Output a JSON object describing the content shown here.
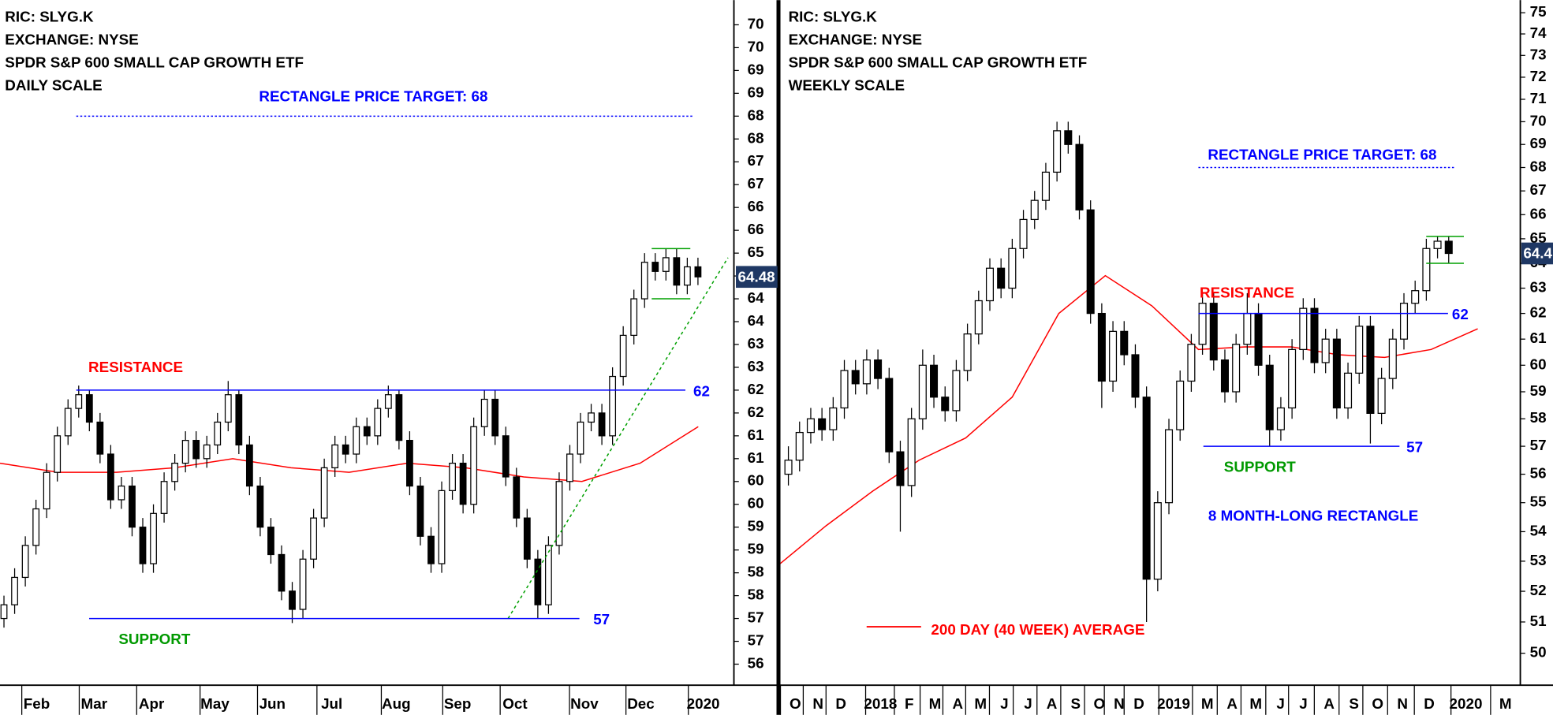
{
  "chart_data": [
    {
      "type": "candlestick",
      "header": [
        "RIC: SLYG.K",
        "EXCHANGE: NYSE",
        "SPDR S&P 600 SMALL CAP GROWTH ETF",
        "DAILY SCALE"
      ],
      "log_scale": false,
      "ylim": [
        55.54,
        70.54
      ],
      "yticks": [
        70,
        {
          "value": 69.5,
          "label": "70"
        },
        69,
        {
          "value": 68.5,
          "label": "69"
        },
        68,
        {
          "value": 67.5,
          "label": "68"
        },
        67,
        {
          "value": 66.5,
          "label": "67"
        },
        66,
        {
          "value": 65.5,
          "label": "66"
        },
        65,
        {
          "value": 64.5,
          "label": "65"
        },
        64,
        {
          "value": 63.5,
          "label": "64"
        },
        63,
        {
          "value": 62.5,
          "label": "63"
        },
        62,
        {
          "value": 61.5,
          "label": "62"
        },
        61,
        {
          "value": 60.5,
          "label": "61"
        },
        60,
        {
          "value": 59.5,
          "label": "60"
        },
        59,
        {
          "value": 58.5,
          "label": "59"
        },
        58,
        {
          "value": 57.5,
          "label": "58"
        },
        57,
        {
          "value": 56.5,
          "label": "57"
        },
        56
      ],
      "categories": [
        "Feb",
        "Mar",
        "Apr",
        "May",
        "Jun",
        "Jul",
        "Aug",
        "Sep",
        "Oct",
        "Nov",
        "Dec",
        "2020"
      ],
      "candles": [
        [
          57.0,
          57.5,
          56.8,
          57.3
        ],
        [
          57.3,
          58.1,
          57.1,
          57.9
        ],
        [
          57.9,
          58.8,
          57.7,
          58.6
        ],
        [
          58.6,
          59.6,
          58.4,
          59.4
        ],
        [
          59.4,
          60.4,
          59.2,
          60.2
        ],
        [
          60.2,
          61.2,
          60.0,
          61.0
        ],
        [
          61.0,
          61.8,
          60.8,
          61.6
        ],
        [
          61.6,
          62.1,
          61.4,
          61.9
        ],
        [
          61.9,
          62.0,
          61.1,
          61.3
        ],
        [
          61.3,
          61.5,
          60.4,
          60.6
        ],
        [
          60.6,
          60.8,
          59.4,
          59.6
        ],
        [
          59.6,
          60.1,
          59.4,
          59.9
        ],
        [
          59.9,
          60.1,
          58.8,
          59.0
        ],
        [
          59.0,
          59.2,
          58.0,
          58.2
        ],
        [
          58.2,
          59.5,
          58.0,
          59.3
        ],
        [
          59.3,
          60.2,
          59.1,
          60.0
        ],
        [
          60.0,
          60.6,
          59.8,
          60.4
        ],
        [
          60.4,
          61.1,
          60.2,
          60.9
        ],
        [
          60.9,
          61.1,
          60.3,
          60.5
        ],
        [
          60.5,
          61.0,
          60.3,
          60.8
        ],
        [
          60.8,
          61.5,
          60.6,
          61.3
        ],
        [
          61.3,
          62.2,
          61.1,
          61.9
        ],
        [
          61.9,
          62.0,
          60.6,
          60.8
        ],
        [
          60.8,
          61.0,
          59.7,
          59.9
        ],
        [
          59.9,
          60.1,
          58.8,
          59.0
        ],
        [
          59.0,
          59.2,
          58.2,
          58.4
        ],
        [
          58.4,
          58.6,
          57.4,
          57.6
        ],
        [
          57.6,
          57.8,
          56.9,
          57.2
        ],
        [
          57.2,
          58.5,
          57.0,
          58.3
        ],
        [
          58.3,
          59.4,
          58.1,
          59.2
        ],
        [
          59.2,
          60.5,
          59.0,
          60.3
        ],
        [
          60.3,
          61.0,
          60.1,
          60.8
        ],
        [
          60.8,
          61.0,
          60.4,
          60.6
        ],
        [
          60.6,
          61.4,
          60.4,
          61.2
        ],
        [
          61.2,
          61.4,
          60.8,
          61.0
        ],
        [
          61.0,
          61.8,
          60.8,
          61.6
        ],
        [
          61.6,
          62.1,
          61.4,
          61.9
        ],
        [
          61.9,
          62.0,
          60.7,
          60.9
        ],
        [
          60.9,
          61.1,
          59.7,
          59.9
        ],
        [
          59.9,
          60.1,
          58.6,
          58.8
        ],
        [
          58.8,
          59.0,
          58.0,
          58.2
        ],
        [
          58.2,
          60.0,
          58.0,
          59.8
        ],
        [
          59.8,
          60.6,
          59.6,
          60.4
        ],
        [
          60.4,
          60.6,
          59.3,
          59.5
        ],
        [
          59.5,
          61.4,
          59.3,
          61.2
        ],
        [
          61.2,
          62.0,
          61.0,
          61.8
        ],
        [
          61.8,
          62.0,
          60.8,
          61.0
        ],
        [
          61.0,
          61.2,
          59.9,
          60.1
        ],
        [
          60.1,
          60.3,
          59.0,
          59.2
        ],
        [
          59.2,
          59.4,
          58.1,
          58.3
        ],
        [
          58.3,
          58.5,
          57.0,
          57.3
        ],
        [
          57.3,
          58.8,
          57.1,
          58.6
        ],
        [
          58.6,
          60.2,
          58.4,
          60.0
        ],
        [
          60.0,
          60.8,
          59.8,
          60.6
        ],
        [
          60.6,
          61.5,
          60.4,
          61.3
        ],
        [
          61.3,
          61.7,
          61.1,
          61.5
        ],
        [
          61.5,
          61.7,
          60.8,
          61.0
        ],
        [
          61.0,
          62.5,
          60.8,
          62.3
        ],
        [
          62.3,
          63.4,
          62.1,
          63.2
        ],
        [
          63.2,
          64.2,
          63.0,
          64.0
        ],
        [
          64.0,
          65.0,
          63.8,
          64.8
        ],
        [
          64.8,
          65.0,
          64.4,
          64.6
        ],
        [
          64.6,
          65.1,
          64.4,
          64.9
        ],
        [
          64.9,
          65.1,
          64.1,
          64.3
        ],
        [
          64.3,
          64.9,
          64.1,
          64.7
        ],
        [
          64.7,
          64.9,
          64.3,
          64.48
        ]
      ],
      "moving_average": {
        "color": "#ff0000",
        "values": [
          60.4,
          60.2,
          60.2,
          60.3,
          60.5,
          60.3,
          60.2,
          60.4,
          60.3,
          60.1,
          60.0,
          60.4,
          61.2
        ]
      },
      "levels": [
        {
          "name": "RECTANGLE PRICE TARGET: 68",
          "value": 68,
          "color": "#0000ff",
          "label_color": "#0000ff",
          "dotted": true
        },
        {
          "name": "RESISTANCE",
          "value": 62,
          "color": "#0000ff",
          "label_color": "#ff0000",
          "dotted": false
        },
        {
          "name": "SUPPORT",
          "value": 57,
          "color": "#0000ff",
          "label_color": "#009900",
          "dotted": false
        }
      ],
      "channel": [
        65.1,
        64.0
      ],
      "trendline": [
        57.0,
        64.9
      ],
      "last_price": 64.48
    },
    {
      "type": "candlestick",
      "header": [
        "RIC: SLYG.K",
        "EXCHANGE: NYSE",
        "SPDR S&P 600 SMALL CAP GROWTH ETF",
        "WEEKLY SCALE"
      ],
      "log_scale": true,
      "ylim": [
        49.0,
        75.6
      ],
      "yticks": [
        50,
        51,
        52,
        53,
        54,
        55,
        56,
        57,
        58,
        59,
        60,
        61,
        62,
        63,
        64,
        65,
        66,
        67,
        68,
        69,
        70,
        71,
        72,
        73,
        74,
        75
      ],
      "categories": [
        "O",
        "N",
        "D",
        "2018",
        "F",
        "M",
        "A",
        "M",
        "J",
        "J",
        "A",
        "S",
        "O",
        "N",
        "D",
        "2019",
        "M",
        "A",
        "M",
        "J",
        "J",
        "A",
        "S",
        "O",
        "N",
        "D",
        "2020",
        "M"
      ],
      "candles": [
        [
          56.0,
          57.0,
          55.6,
          56.5
        ],
        [
          56.5,
          57.9,
          56.1,
          57.5
        ],
        [
          57.5,
          58.4,
          57.1,
          58.0
        ],
        [
          58.0,
          58.4,
          57.2,
          57.6
        ],
        [
          57.6,
          58.8,
          57.2,
          58.4
        ],
        [
          58.4,
          60.2,
          58.0,
          59.8
        ],
        [
          59.8,
          60.2,
          58.9,
          59.3
        ],
        [
          59.3,
          60.6,
          58.9,
          60.2
        ],
        [
          60.2,
          60.6,
          59.1,
          59.5
        ],
        [
          59.5,
          59.9,
          56.4,
          56.8
        ],
        [
          56.8,
          57.2,
          54.0,
          55.6
        ],
        [
          55.6,
          58.4,
          55.2,
          58.0
        ],
        [
          58.0,
          60.6,
          57.6,
          60.0
        ],
        [
          60.0,
          60.4,
          58.4,
          58.8
        ],
        [
          58.8,
          59.2,
          57.9,
          58.3
        ],
        [
          58.3,
          60.2,
          57.9,
          59.8
        ],
        [
          59.8,
          61.6,
          59.4,
          61.2
        ],
        [
          61.2,
          62.9,
          60.8,
          62.5
        ],
        [
          62.5,
          64.2,
          62.1,
          63.8
        ],
        [
          63.8,
          64.2,
          62.6,
          63.0
        ],
        [
          63.0,
          65.0,
          62.6,
          64.6
        ],
        [
          64.6,
          66.2,
          64.2,
          65.8
        ],
        [
          65.8,
          67.0,
          65.4,
          66.6
        ],
        [
          66.6,
          68.2,
          66.2,
          67.8
        ],
        [
          67.8,
          70.0,
          67.4,
          69.6
        ],
        [
          69.6,
          70.0,
          68.6,
          69.0
        ],
        [
          69.0,
          69.4,
          65.8,
          66.2
        ],
        [
          66.2,
          66.6,
          61.6,
          62.0
        ],
        [
          62.0,
          62.4,
          58.4,
          59.4
        ],
        [
          59.4,
          61.7,
          59.0,
          61.3
        ],
        [
          61.3,
          61.7,
          60.0,
          60.4
        ],
        [
          60.4,
          60.8,
          58.4,
          58.8
        ],
        [
          58.8,
          59.2,
          51.0,
          52.4
        ],
        [
          52.4,
          55.4,
          52.0,
          55.0
        ],
        [
          55.0,
          58.0,
          54.6,
          57.6
        ],
        [
          57.6,
          59.8,
          57.2,
          59.4
        ],
        [
          59.4,
          61.2,
          59.0,
          60.8
        ],
        [
          60.8,
          62.8,
          60.4,
          62.4
        ],
        [
          62.4,
          62.8,
          59.8,
          60.2
        ],
        [
          60.2,
          60.6,
          58.6,
          59.0
        ],
        [
          59.0,
          61.2,
          58.6,
          60.8
        ],
        [
          60.8,
          62.8,
          60.4,
          62.0
        ],
        [
          62.0,
          62.4,
          59.6,
          60.0
        ],
        [
          60.0,
          60.4,
          57.0,
          57.6
        ],
        [
          57.6,
          58.8,
          57.2,
          58.4
        ],
        [
          58.4,
          61.0,
          58.0,
          60.6
        ],
        [
          60.6,
          62.6,
          60.2,
          62.2
        ],
        [
          62.2,
          62.6,
          59.7,
          60.1
        ],
        [
          60.1,
          61.4,
          59.7,
          61.0
        ],
        [
          61.0,
          61.4,
          58.0,
          58.4
        ],
        [
          58.4,
          60.1,
          58.0,
          59.7
        ],
        [
          59.7,
          61.9,
          59.3,
          61.5
        ],
        [
          61.5,
          61.9,
          57.1,
          58.2
        ],
        [
          58.2,
          59.9,
          57.8,
          59.5
        ],
        [
          59.5,
          61.4,
          59.1,
          61.0
        ],
        [
          61.0,
          62.8,
          60.6,
          62.4
        ],
        [
          62.4,
          63.3,
          62.0,
          62.9
        ],
        [
          62.9,
          65.0,
          62.5,
          64.6
        ],
        [
          64.6,
          65.1,
          64.2,
          64.9
        ],
        [
          64.9,
          65.1,
          64.0,
          64.4
        ]
      ],
      "moving_average": {
        "name": "200 DAY (40 WEEK) AVERAGE",
        "color": "#ff0000",
        "values": [
          52.9,
          54.2,
          55.4,
          56.5,
          57.3,
          58.8,
          62.0,
          63.5,
          62.3,
          60.6,
          60.7,
          60.7,
          60.4,
          60.3,
          60.6,
          61.4
        ]
      },
      "levels": [
        {
          "name": "RECTANGLE PRICE TARGET: 68",
          "value": 68,
          "color": "#0000ff",
          "label_color": "#0000ff",
          "dotted": true
        },
        {
          "name": "RESISTANCE",
          "value": 62,
          "color": "#0000ff",
          "label_color": "#ff0000",
          "dotted": false
        },
        {
          "name": "SUPPORT",
          "value": 57,
          "color": "#0000ff",
          "label_color": "#009900",
          "dotted": false
        }
      ],
      "note": "8 MONTH-LONG RECTANGLE",
      "channel": [
        65.1,
        64.0
      ],
      "last_price": 64.4
    }
  ]
}
